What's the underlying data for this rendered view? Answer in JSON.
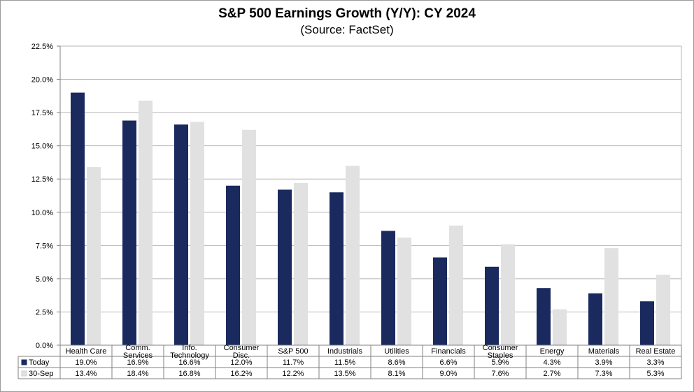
{
  "chart_data": {
    "type": "bar",
    "title": "S&P 500 Earnings Growth (Y/Y): CY 2024",
    "subtitle": "(Source: FactSet)",
    "ylim": [
      0,
      22.5
    ],
    "yticks": [
      0,
      2.5,
      5,
      7.5,
      10,
      12.5,
      15,
      17.5,
      20,
      22.5
    ],
    "ytick_labels": [
      "0.0%",
      "2.5%",
      "5.0%",
      "7.5%",
      "10.0%",
      "12.5%",
      "15.0%",
      "17.5%",
      "20.0%",
      "22.5%"
    ],
    "grid": "horizontal",
    "legend": "data-table",
    "categories": [
      [
        "Health Care"
      ],
      [
        "Comm.",
        "Services"
      ],
      [
        "Info.",
        "Technology"
      ],
      [
        "Consumer",
        "Disc."
      ],
      [
        "S&P 500"
      ],
      [
        "Industrials"
      ],
      [
        "Utilities"
      ],
      [
        "Financials"
      ],
      [
        "Consumer",
        "Staples"
      ],
      [
        "Energy"
      ],
      [
        "Materials"
      ],
      [
        "Real Estate"
      ]
    ],
    "series": [
      {
        "name": "Today",
        "color": "#1a2a5e",
        "values": [
          19.0,
          16.9,
          16.6,
          12.0,
          11.7,
          11.5,
          8.6,
          6.6,
          5.9,
          4.3,
          3.9,
          3.3
        ],
        "labels": [
          "19.0%",
          "16.9%",
          "16.6%",
          "12.0%",
          "11.7%",
          "11.5%",
          "8.6%",
          "6.6%",
          "5.9%",
          "4.3%",
          "3.9%",
          "3.3%"
        ]
      },
      {
        "name": "30-Sep",
        "color": "#e1e1e1",
        "values": [
          13.4,
          18.4,
          16.8,
          16.2,
          12.2,
          13.5,
          8.1,
          9.0,
          7.6,
          2.7,
          7.3,
          5.3
        ],
        "labels": [
          "13.4%",
          "18.4%",
          "16.8%",
          "16.2%",
          "12.2%",
          "13.5%",
          "8.1%",
          "9.0%",
          "7.6%",
          "2.7%",
          "7.3%",
          "5.3%"
        ]
      }
    ]
  }
}
